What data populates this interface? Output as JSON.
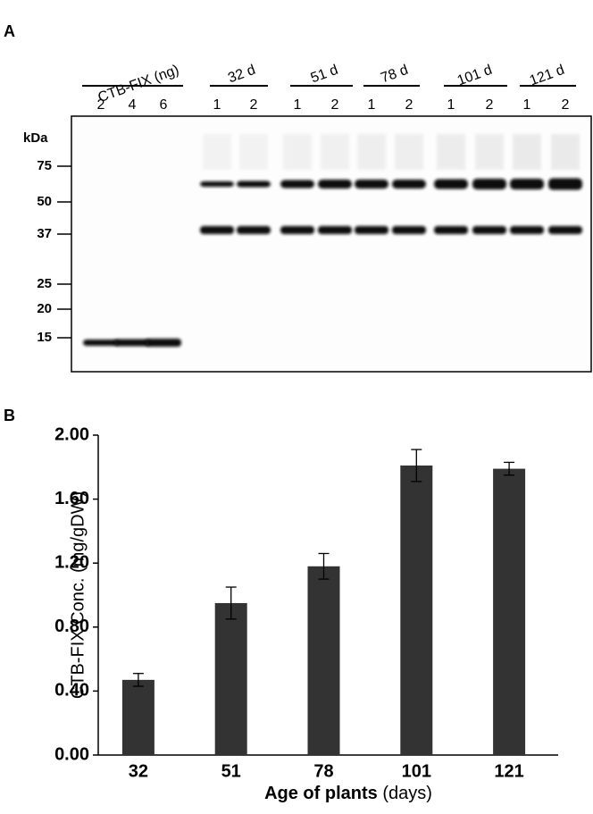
{
  "blot": {
    "panel_label": "A",
    "marker_unit": "kDa",
    "markers": [
      75,
      50,
      37,
      25,
      20,
      15
    ],
    "groups": [
      {
        "title": "CTB-FIX (ng)",
        "lanes": [
          "2",
          "4",
          "6"
        ]
      },
      {
        "title": "32 d",
        "lanes": [
          "1",
          "2"
        ]
      },
      {
        "title": "51 d",
        "lanes": [
          "1",
          "2"
        ]
      },
      {
        "title": "78 d",
        "lanes": [
          "1",
          "2"
        ]
      },
      {
        "title": "101 d",
        "lanes": [
          "1",
          "2"
        ]
      },
      {
        "title": "121 d",
        "lanes": [
          "1",
          "2"
        ]
      }
    ]
  },
  "chart_data": {
    "type": "bar",
    "panel_label": "B",
    "ylabel": "CTB-FIX Conc. (mg/gDW)",
    "xlabel": "Age of plants",
    "xlabel_unit": "(days)",
    "categories": [
      "32",
      "51",
      "78",
      "101",
      "121"
    ],
    "values": [
      0.47,
      0.95,
      1.18,
      1.81,
      1.79
    ],
    "errors": [
      0.04,
      0.1,
      0.08,
      0.1,
      0.04
    ],
    "color": "#333333",
    "ylim": [
      0,
      2
    ],
    "yticks": [
      {
        "value": 0,
        "label": "0.00"
      },
      {
        "value": 0.4,
        "label": "0.40"
      },
      {
        "value": 0.8,
        "label": "0.80"
      },
      {
        "value": 1.2,
        "label": "1.20"
      },
      {
        "value": 1.6,
        "label": "1.60"
      },
      {
        "value": 2,
        "label": "2.00"
      }
    ]
  }
}
